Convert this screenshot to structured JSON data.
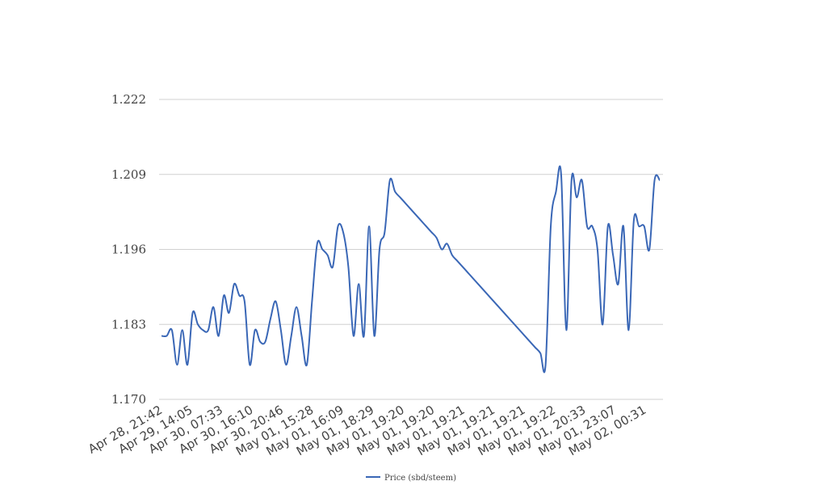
{
  "chart_data": {
    "type": "line",
    "title": "",
    "xlabel": "",
    "ylabel": "",
    "ylim": [
      1.17,
      1.222
    ],
    "y_ticks": [
      "1.170",
      "1.183",
      "1.196",
      "1.209",
      "1.222"
    ],
    "y_tick_values": [
      1.17,
      1.183,
      1.196,
      1.209,
      1.222
    ],
    "x_tick_labels": [
      "Apr 28, 21:42",
      "Apr 29, 14:05",
      "Apr 30, 07:33",
      "Apr 30, 16:10",
      "Apr 30, 20:46",
      "May 01, 15:28",
      "May 01, 16:09",
      "May 01, 18:29",
      "May 01, 19:20",
      "May 01, 19:20",
      "May 01, 19:21",
      "May 01, 19:21",
      "May 01, 19:21",
      "May 01, 19:22",
      "May 01, 20:33",
      "May 01, 23:07",
      "May 02, 00:31"
    ],
    "grid": true,
    "legend_position": "bottom-center",
    "series": [
      {
        "name": "Price (sbd/steem)",
        "color": "#3a67b6",
        "values": [
          1.181,
          1.181,
          1.182,
          1.176,
          1.182,
          1.176,
          1.185,
          1.183,
          1.182,
          1.182,
          1.186,
          1.181,
          1.188,
          1.185,
          1.19,
          1.188,
          1.187,
          1.176,
          1.182,
          1.18,
          1.18,
          1.184,
          1.187,
          1.182,
          1.176,
          1.181,
          1.186,
          1.181,
          1.176,
          1.187,
          1.197,
          1.196,
          1.195,
          1.193,
          1.2,
          1.199,
          1.193,
          1.181,
          1.19,
          1.181,
          1.2,
          1.181,
          1.196,
          1.199,
          1.208,
          1.206,
          1.205,
          1.204,
          1.203,
          1.202,
          1.201,
          1.2,
          1.199,
          1.198,
          1.196,
          1.197,
          1.195,
          1.194,
          1.193,
          1.192,
          1.191,
          1.19,
          1.189,
          1.188,
          1.187,
          1.186,
          1.185,
          1.184,
          1.183,
          1.182,
          1.181,
          1.18,
          1.179,
          1.178,
          1.176,
          1.2,
          1.206,
          1.209,
          1.182,
          1.208,
          1.205,
          1.208,
          1.2,
          1.2,
          1.196,
          1.183,
          1.2,
          1.195,
          1.19,
          1.2,
          1.182,
          1.201,
          1.2,
          1.2,
          1.196,
          1.208,
          1.208
        ]
      }
    ]
  }
}
